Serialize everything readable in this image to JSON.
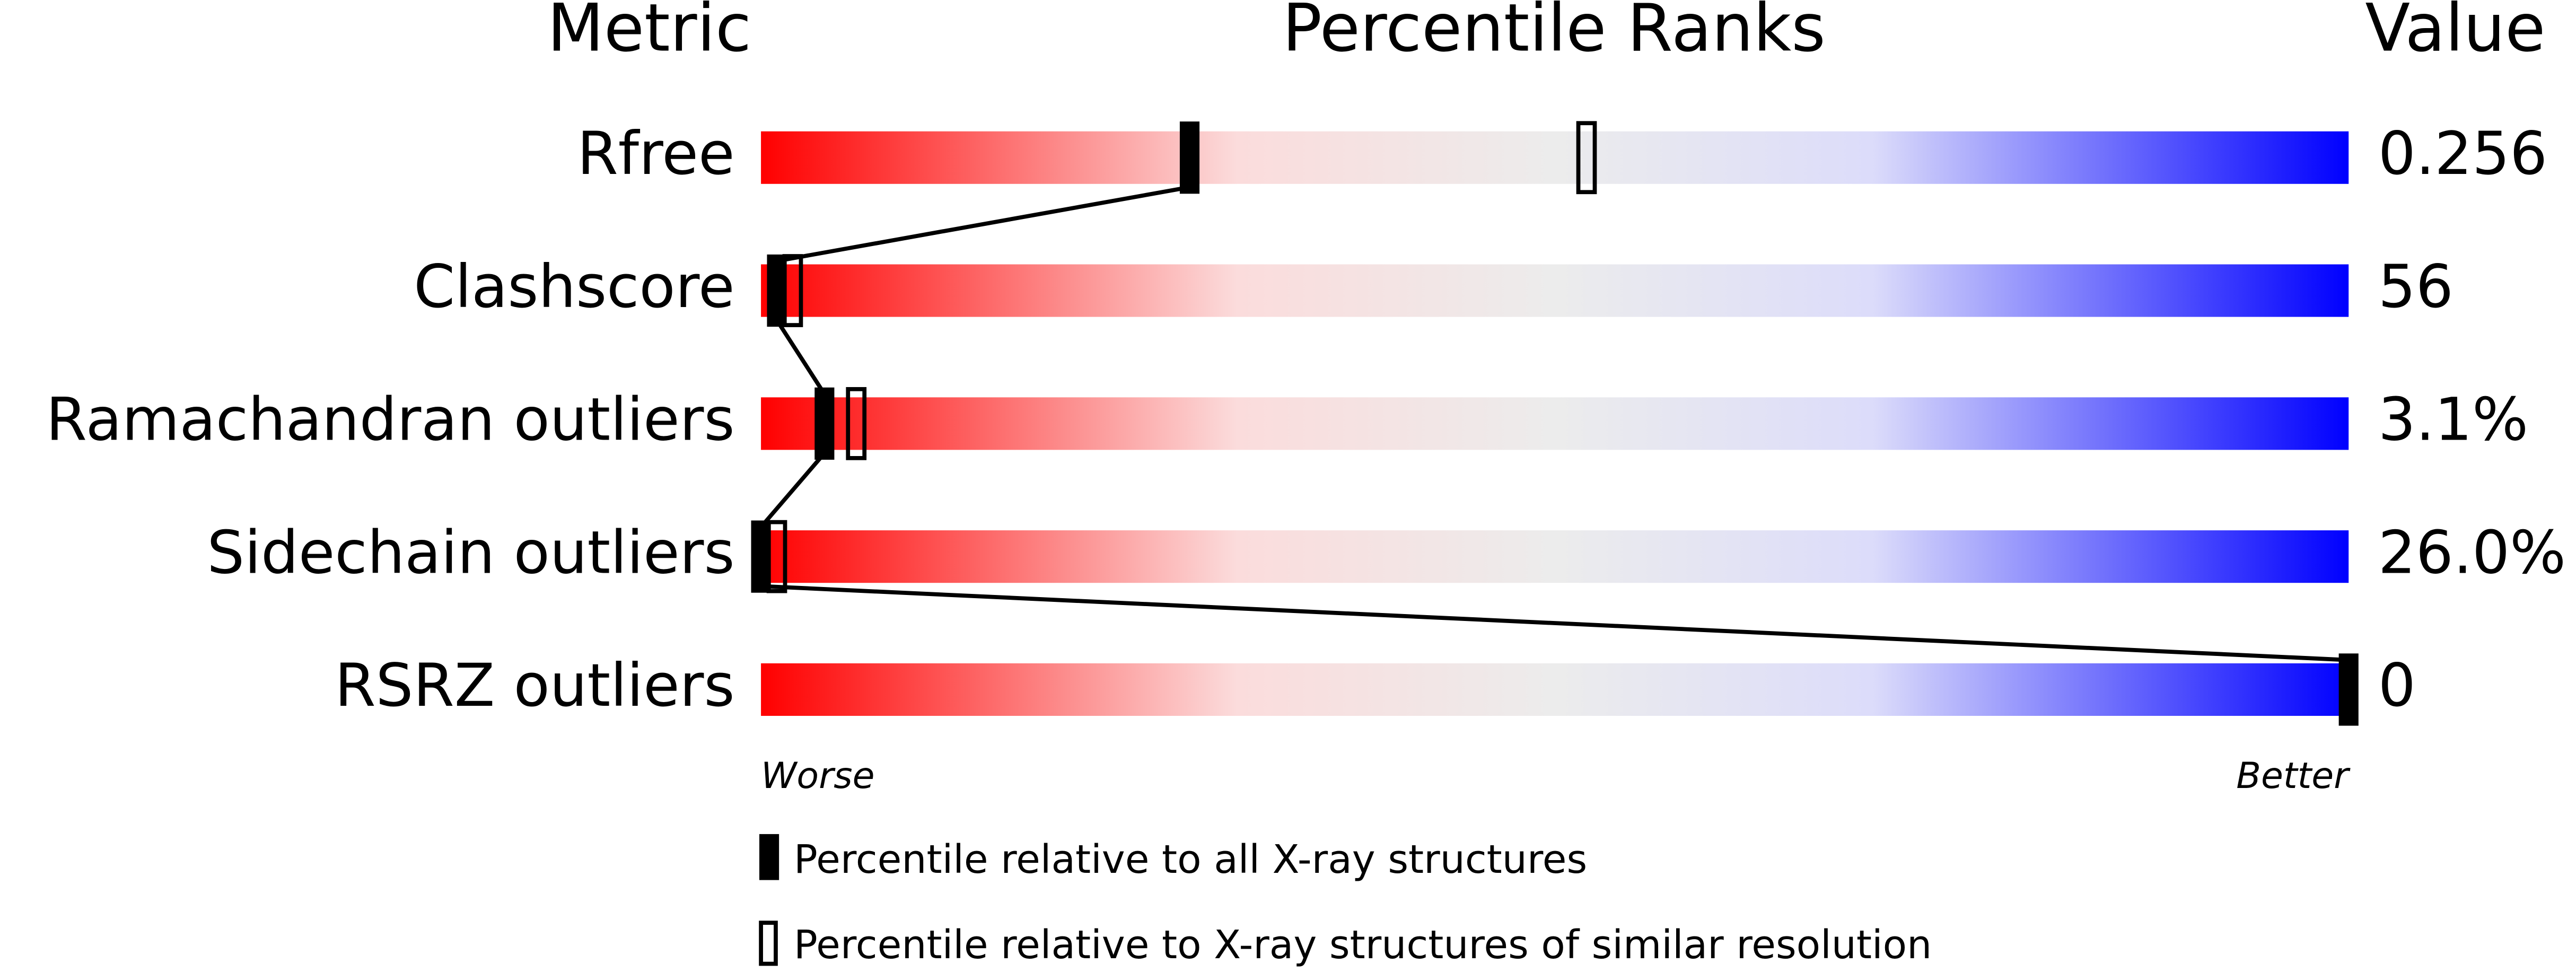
{
  "chart_data": {
    "type": "percentile",
    "headers": [
      "Metric",
      "Percentile Ranks",
      "Value"
    ],
    "categories": [
      "Rfree",
      "Clashscore",
      "Ramachandran outliers",
      "Sidechain outliers",
      "RSRZ outliers"
    ],
    "values": [
      "0.256",
      "56",
      "3.1%",
      "26.0%",
      "0"
    ],
    "series": [
      {
        "name": "Percentile relative to all X-ray structures",
        "color": "#000000",
        "values": [
          27,
          1,
          4,
          0,
          100
        ]
      },
      {
        "name": "Percentile relative to X-ray structures of similar resolution",
        "color": "#000000",
        "values": [
          52,
          2,
          6,
          1,
          null
        ]
      }
    ],
    "xlim": [
      0,
      100
    ],
    "xlabel_left": "Worse",
    "xlabel_right": "Better"
  }
}
